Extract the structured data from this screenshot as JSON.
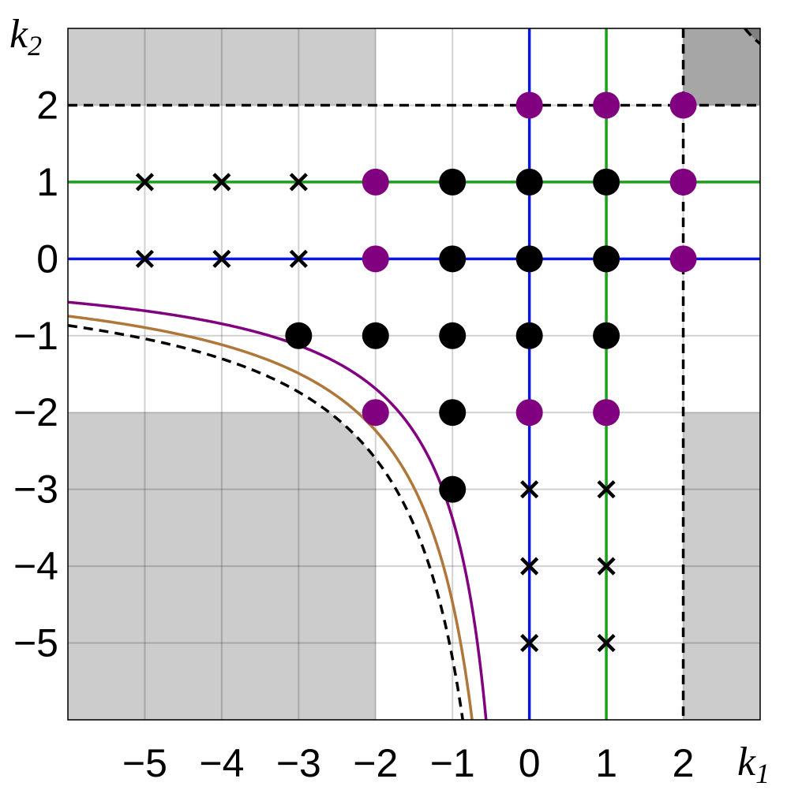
{
  "chart_data": {
    "type": "scatter",
    "xlabel": "k",
    "xlabel_sub": "1",
    "ylabel": "k",
    "ylabel_sub": "2",
    "xlim": [
      -6,
      3
    ],
    "ylim": [
      -6,
      3
    ],
    "x_ticks": [
      -5,
      -4,
      -3,
      -2,
      -1,
      0,
      1,
      2
    ],
    "x_tick_labels": [
      "−5",
      "−4",
      "−3",
      "−2",
      "−1",
      "0",
      "1",
      "2"
    ],
    "y_ticks": [
      2,
      1,
      0,
      -1,
      -2,
      -3,
      -4,
      -5
    ],
    "y_tick_labels": [
      "2",
      "1",
      "0",
      "−1",
      "−2",
      "−3",
      "−4",
      "−5"
    ],
    "grid": true,
    "colors": {
      "shade_light": "#cccccc",
      "shade_mid": "#a6a6a6",
      "shade_dark": "#808080",
      "blue": "#0a14e6",
      "green": "#1aa01a",
      "purple": "#800080",
      "brown": "#b0773a",
      "black": "#000000"
    },
    "lines": [
      {
        "orientation": "vertical",
        "at": 0,
        "color": "blue"
      },
      {
        "orientation": "vertical",
        "at": 1,
        "color": "green"
      },
      {
        "orientation": "horizontal",
        "at": 0,
        "color": "blue"
      },
      {
        "orientation": "horizontal",
        "at": 1,
        "color": "green"
      }
    ],
    "dashed_lines": [
      {
        "orientation": "vertical",
        "at": 2
      },
      {
        "orientation": "horizontal",
        "at": 2
      }
    ],
    "curves": [
      {
        "shift": 0,
        "c": 3.38,
        "color": "purple",
        "style": "solid"
      },
      {
        "shift": 0,
        "c": 4.47,
        "color": "brown",
        "style": "solid"
      },
      {
        "shift": 0,
        "c": 5.2,
        "color": "black",
        "style": "dashed"
      },
      {
        "shift": 2,
        "c": 0.8,
        "color": "black",
        "style": "dashed"
      }
    ],
    "points_black": [
      [
        -3,
        -1
      ],
      [
        -2,
        -1
      ],
      [
        -1,
        -1
      ],
      [
        0,
        -1
      ],
      [
        1,
        -1
      ],
      [
        -1,
        0
      ],
      [
        0,
        0
      ],
      [
        1,
        0
      ],
      [
        -1,
        1
      ],
      [
        0,
        1
      ],
      [
        1,
        1
      ],
      [
        -1,
        -2
      ],
      [
        -1,
        -3
      ]
    ],
    "points_purple": [
      [
        0,
        2
      ],
      [
        1,
        2
      ],
      [
        2,
        2
      ],
      [
        -2,
        1
      ],
      [
        2,
        1
      ],
      [
        -2,
        0
      ],
      [
        2,
        0
      ],
      [
        -2,
        -2
      ],
      [
        0,
        -2
      ],
      [
        1,
        -2
      ]
    ],
    "crosses": [
      [
        -5,
        1
      ],
      [
        -4,
        1
      ],
      [
        -3,
        1
      ],
      [
        -5,
        0
      ],
      [
        -4,
        0
      ],
      [
        -3,
        0
      ],
      [
        0,
        -3
      ],
      [
        1,
        -3
      ],
      [
        0,
        -4
      ],
      [
        1,
        -4
      ],
      [
        0,
        -5
      ],
      [
        1,
        -5
      ]
    ]
  }
}
